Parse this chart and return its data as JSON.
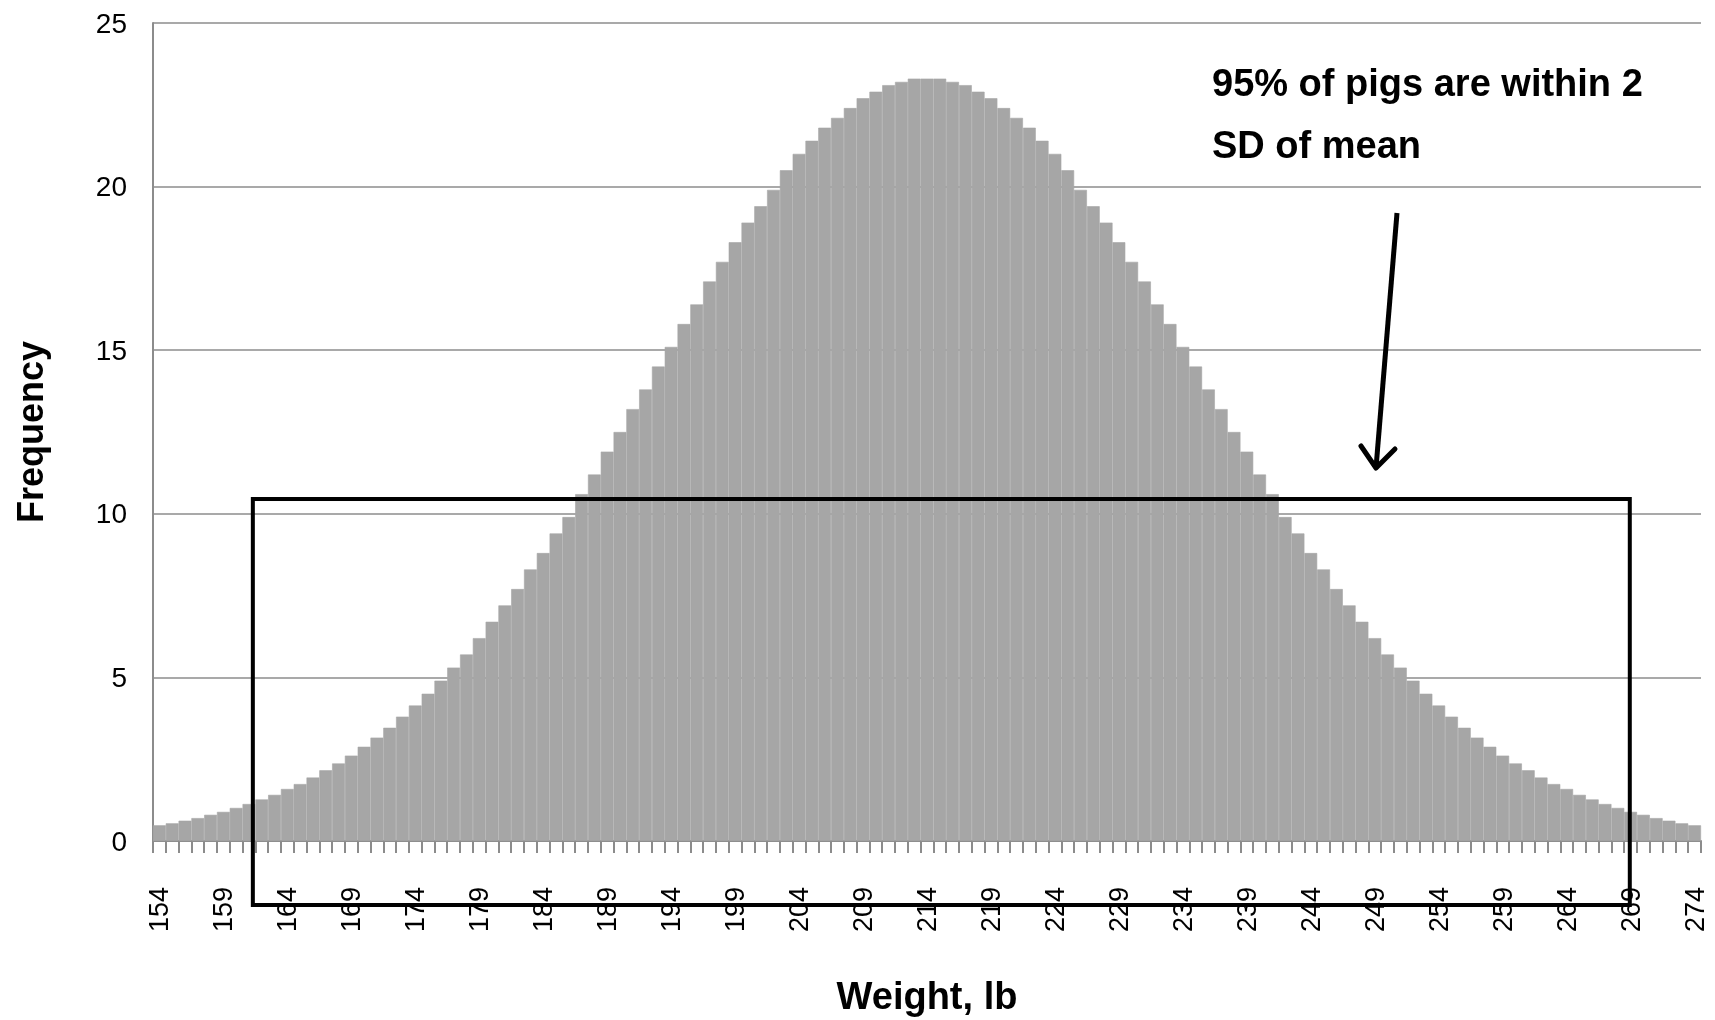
{
  "chart_data": {
    "type": "bar",
    "xlabel": "Weight, lb",
    "ylabel": "Frequency",
    "categories": [
      "154",
      null,
      null,
      null,
      null,
      "159",
      null,
      null,
      null,
      null,
      "164",
      null,
      null,
      null,
      null,
      "169",
      null,
      null,
      null,
      null,
      "174",
      null,
      null,
      null,
      null,
      "179",
      null,
      null,
      null,
      null,
      "184",
      null,
      null,
      null,
      null,
      "189",
      null,
      null,
      null,
      null,
      "194",
      null,
      null,
      null,
      null,
      "199",
      null,
      null,
      null,
      null,
      "204",
      null,
      null,
      null,
      null,
      "209",
      null,
      null,
      null,
      null,
      "214",
      null,
      null,
      null,
      null,
      "219",
      null,
      null,
      null,
      null,
      "224",
      null,
      null,
      null,
      null,
      "229",
      null,
      null,
      null,
      null,
      "234",
      null,
      null,
      null,
      null,
      "239",
      null,
      null,
      null,
      null,
      "244",
      null,
      null,
      null,
      null,
      "249",
      null,
      null,
      null,
      null,
      "254",
      null,
      null,
      null,
      null,
      "259",
      null,
      null,
      null,
      null,
      "264",
      null,
      null,
      null,
      null,
      "269",
      null,
      null,
      null,
      null,
      "274"
    ],
    "values": [
      0.48,
      0.54,
      0.62,
      0.7,
      0.8,
      0.89,
      1.01,
      1.13,
      1.27,
      1.41,
      1.59,
      1.74,
      1.94,
      2.16,
      2.37,
      2.61,
      2.88,
      3.16,
      3.46,
      3.8,
      4.14,
      4.5,
      4.9,
      5.3,
      5.7,
      6.2,
      6.7,
      7.2,
      7.7,
      8.3,
      8.8,
      9.4,
      9.9,
      10.6,
      11.2,
      11.9,
      12.5,
      13.2,
      13.8,
      14.5,
      15.1,
      15.8,
      16.4,
      17.1,
      17.7,
      18.3,
      18.9,
      19.4,
      19.9,
      20.5,
      21.0,
      21.4,
      21.8,
      22.1,
      22.4,
      22.7,
      22.9,
      23.1,
      23.2,
      23.3,
      23.3,
      23.3,
      23.2,
      23.1,
      22.9,
      22.7,
      22.4,
      22.1,
      21.8,
      21.4,
      21.0,
      20.5,
      19.9,
      19.4,
      18.9,
      18.3,
      17.7,
      17.1,
      16.4,
      15.8,
      15.1,
      14.5,
      13.8,
      13.2,
      12.5,
      11.9,
      11.2,
      10.6,
      9.9,
      9.4,
      8.8,
      8.3,
      7.7,
      7.2,
      6.7,
      6.2,
      5.7,
      5.3,
      4.9,
      4.5,
      4.14,
      3.8,
      3.46,
      3.16,
      2.88,
      2.61,
      2.37,
      2.16,
      1.94,
      1.74,
      1.59,
      1.41,
      1.27,
      1.13,
      1.01,
      0.89,
      0.8,
      0.7,
      0.62,
      0.54,
      0.48
    ],
    "color": "#a6a6a6",
    "ylim": [
      0,
      25
    ],
    "yticks": [
      0,
      5,
      10,
      15,
      20,
      25
    ],
    "grid": "y",
    "annotations": [
      "95% of pigs are within 2 SD of mean"
    ]
  }
}
